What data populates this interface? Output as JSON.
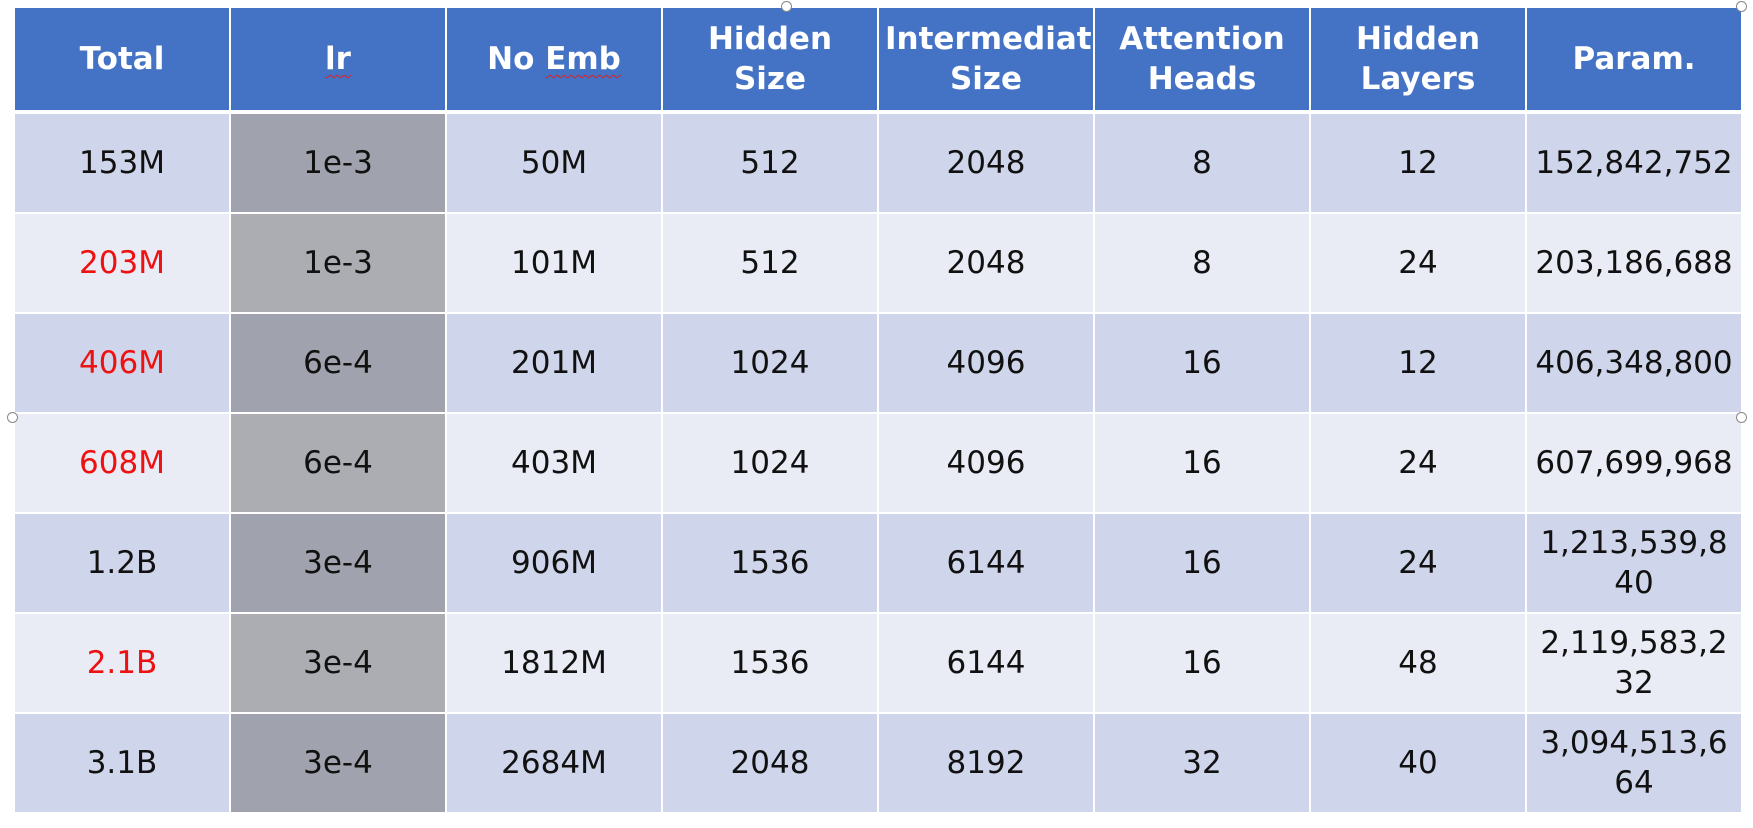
{
  "table": {
    "headers": [
      {
        "label": "Total",
        "name": "header-total"
      },
      {
        "label": "lr",
        "name": "header-lr"
      },
      {
        "label": "No Emb",
        "name": "header-no-emb"
      },
      {
        "label": "Hidden Size",
        "name": "header-hidden-size"
      },
      {
        "label": "Intermediate Size",
        "name": "header-intermediate-size"
      },
      {
        "label": "Attention Heads",
        "name": "header-attention-heads"
      },
      {
        "label": "Hidden Layers",
        "name": "header-hidden-layers"
      },
      {
        "label": "Param.",
        "name": "header-param"
      }
    ],
    "rows": [
      {
        "total": "153M",
        "total_highlight": false,
        "lr": "1e-3",
        "no_emb": "50M",
        "hidden_size": "512",
        "intermediate_size": "2048",
        "attention_heads": "8",
        "hidden_layers": "12",
        "param": "152,842,752"
      },
      {
        "total": "203M",
        "total_highlight": true,
        "lr": "1e-3",
        "no_emb": "101M",
        "hidden_size": "512",
        "intermediate_size": "2048",
        "attention_heads": "8",
        "hidden_layers": "24",
        "param": "203,186,688"
      },
      {
        "total": "406M",
        "total_highlight": true,
        "lr": "6e-4",
        "no_emb": "201M",
        "hidden_size": "1024",
        "intermediate_size": "4096",
        "attention_heads": "16",
        "hidden_layers": "12",
        "param": "406,348,800"
      },
      {
        "total": "608M",
        "total_highlight": true,
        "lr": "6e-4",
        "no_emb": "403M",
        "hidden_size": "1024",
        "intermediate_size": "4096",
        "attention_heads": "16",
        "hidden_layers": "24",
        "param": "607,699,968"
      },
      {
        "total": "1.2B",
        "total_highlight": false,
        "lr": "3e-4",
        "no_emb": "906M",
        "hidden_size": "1536",
        "intermediate_size": "6144",
        "attention_heads": "16",
        "hidden_layers": "24",
        "param": "1,213,539,840"
      },
      {
        "total": "2.1B",
        "total_highlight": true,
        "lr": "3e-4",
        "no_emb": "1812M",
        "hidden_size": "1536",
        "intermediate_size": "6144",
        "attention_heads": "16",
        "hidden_layers": "48",
        "param": "2,119,583,232"
      },
      {
        "total": "3.1B",
        "total_highlight": false,
        "lr": "3e-4",
        "no_emb": "2684M",
        "hidden_size": "2048",
        "intermediate_size": "8192",
        "attention_heads": "32",
        "hidden_layers": "40",
        "param": "3,094,513,664"
      }
    ]
  },
  "colors": {
    "header_bg": "#4472c4",
    "header_text": "#ffffff",
    "band_dark": "#cfd5ea",
    "band_light": "#e9ebf5",
    "lr_column_dark": "#a0a2ad",
    "lr_column_light": "#acadb2",
    "highlight_text": "#ee1111"
  }
}
